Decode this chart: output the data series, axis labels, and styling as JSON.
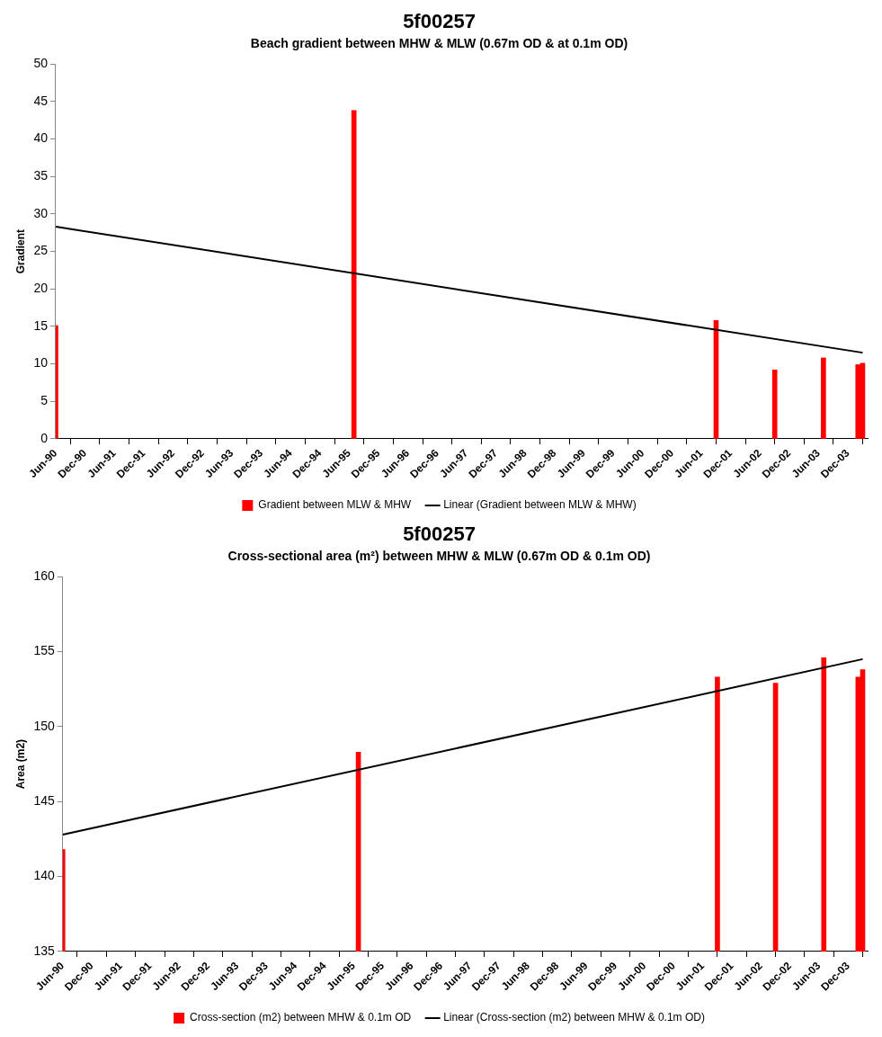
{
  "chart_data": [
    {
      "type": "bar",
      "title": "5f00257",
      "subtitle": "Beach gradient between MHW & MLW (0.67m OD & at 0.1m OD)",
      "ylabel": "Gradient",
      "series": [
        {
          "name": "Gradient between MLW & MHW",
          "color": "#ff0000",
          "x": [
            "1990-06",
            "1995-07",
            "2001-09",
            "2002-09",
            "2003-07",
            "2004-02",
            "2004-03"
          ],
          "values": [
            15.1,
            43.8,
            15.8,
            9.2,
            10.8,
            9.9,
            10.1
          ]
        },
        {
          "type": "line",
          "name": "Linear (Gradient between MLW & MHW)",
          "color": "#000000",
          "x": [
            "1990-06",
            "2004-03"
          ],
          "values": [
            28.3,
            11.5
          ]
        }
      ],
      "xlim": [
        "1990-06",
        "2004-04"
      ],
      "xticks": [
        {
          "value": "1990-06",
          "label": "Jun-90"
        },
        {
          "value": "1990-12",
          "label": "Dec-90"
        },
        {
          "value": "1991-06",
          "label": "Jun-91"
        },
        {
          "value": "1991-12",
          "label": "Dec-91"
        },
        {
          "value": "1992-06",
          "label": "Jun-92"
        },
        {
          "value": "1992-12",
          "label": "Dec-92"
        },
        {
          "value": "1993-06",
          "label": "Jun-93"
        },
        {
          "value": "1993-12",
          "label": "Dec-93"
        },
        {
          "value": "1994-06",
          "label": "Jun-94"
        },
        {
          "value": "1994-12",
          "label": "Dec-94"
        },
        {
          "value": "1995-06",
          "label": "Jun-95"
        },
        {
          "value": "1995-12",
          "label": "Dec-95"
        },
        {
          "value": "1996-06",
          "label": "Jun-96"
        },
        {
          "value": "1996-12",
          "label": "Dec-96"
        },
        {
          "value": "1997-06",
          "label": "Jun-97"
        },
        {
          "value": "1997-12",
          "label": "Dec-97"
        },
        {
          "value": "1998-06",
          "label": "Jun-98"
        },
        {
          "value": "1998-12",
          "label": "Dec-98"
        },
        {
          "value": "1999-06",
          "label": "Jun-99"
        },
        {
          "value": "1999-12",
          "label": "Dec-99"
        },
        {
          "value": "2000-06",
          "label": "Jun-00"
        },
        {
          "value": "2000-12",
          "label": "Dec-00"
        },
        {
          "value": "2001-06",
          "label": "Jun-01"
        },
        {
          "value": "2001-12",
          "label": "Dec-01"
        },
        {
          "value": "2002-06",
          "label": "Jun-02"
        },
        {
          "value": "2002-12",
          "label": "Dec-02"
        },
        {
          "value": "2003-06",
          "label": "Jun-03"
        },
        {
          "value": "2003-12",
          "label": "Dec-03"
        }
      ],
      "ylim": [
        0,
        50
      ],
      "yticks": [
        0,
        5,
        10,
        15,
        20,
        25,
        30,
        35,
        40,
        45,
        50
      ],
      "grid": false,
      "legend": "bottom"
    },
    {
      "type": "bar",
      "title": "5f00257",
      "subtitle": "Cross-sectional area (m²) between MHW & MLW (0.67m OD & 0.1m OD)",
      "ylabel": "Area (m2)",
      "series": [
        {
          "name": "Cross-section (m2) between MHW & 0.1m OD",
          "color": "#ff0000",
          "x": [
            "1990-06",
            "1995-07",
            "2001-09",
            "2002-09",
            "2003-07",
            "2004-02",
            "2004-03"
          ],
          "values": [
            141.8,
            148.3,
            153.3,
            152.9,
            154.6,
            153.3,
            153.8
          ]
        },
        {
          "type": "line",
          "name": "Linear (Cross-section (m2) between MHW & 0.1m OD)",
          "color": "#000000",
          "x": [
            "1990-06",
            "2004-03"
          ],
          "values": [
            142.8,
            154.5
          ]
        }
      ],
      "xlim": [
        "1990-06",
        "2004-04"
      ],
      "xticks": [
        {
          "value": "1990-06",
          "label": "Jun-90"
        },
        {
          "value": "1990-12",
          "label": "Dec-90"
        },
        {
          "value": "1991-06",
          "label": "Jun-91"
        },
        {
          "value": "1991-12",
          "label": "Dec-91"
        },
        {
          "value": "1992-06",
          "label": "Jun-92"
        },
        {
          "value": "1992-12",
          "label": "Dec-92"
        },
        {
          "value": "1993-06",
          "label": "Jun-93"
        },
        {
          "value": "1993-12",
          "label": "Dec-93"
        },
        {
          "value": "1994-06",
          "label": "Jun-94"
        },
        {
          "value": "1994-12",
          "label": "Dec-94"
        },
        {
          "value": "1995-06",
          "label": "Jun-95"
        },
        {
          "value": "1995-12",
          "label": "Dec-95"
        },
        {
          "value": "1996-06",
          "label": "Jun-96"
        },
        {
          "value": "1996-12",
          "label": "Dec-96"
        },
        {
          "value": "1997-06",
          "label": "Jun-97"
        },
        {
          "value": "1997-12",
          "label": "Dec-97"
        },
        {
          "value": "1998-06",
          "label": "Jun-98"
        },
        {
          "value": "1998-12",
          "label": "Dec-98"
        },
        {
          "value": "1999-06",
          "label": "Jun-99"
        },
        {
          "value": "1999-12",
          "label": "Dec-99"
        },
        {
          "value": "2000-06",
          "label": "Jun-00"
        },
        {
          "value": "2000-12",
          "label": "Dec-00"
        },
        {
          "value": "2001-06",
          "label": "Jun-01"
        },
        {
          "value": "2001-12",
          "label": "Dec-01"
        },
        {
          "value": "2002-06",
          "label": "Jun-02"
        },
        {
          "value": "2002-12",
          "label": "Dec-02"
        },
        {
          "value": "2003-06",
          "label": "Jun-03"
        },
        {
          "value": "2003-12",
          "label": "Dec-03"
        }
      ],
      "ylim": [
        135,
        160
      ],
      "yticks": [
        135,
        140,
        145,
        150,
        155,
        160
      ],
      "grid": false,
      "legend": "bottom"
    }
  ]
}
